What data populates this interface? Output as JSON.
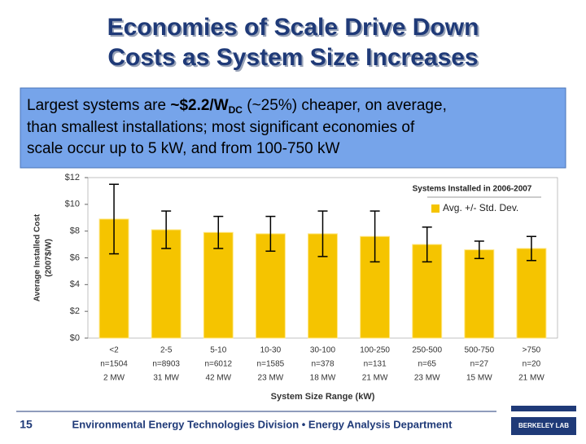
{
  "header": {
    "title_lines": [
      "Economies of Scale Drive Down",
      "Costs as System Size Increases"
    ]
  },
  "callout": {
    "before": "Largest systems are ",
    "highlight": "~$2.2/W",
    "subscript": "DC",
    "after_lines": [
      " (~25%) cheaper, on average,",
      "than smallest installations; most significant economies of",
      "scale occur up to 5 kW, and from 100-750 kW"
    ]
  },
  "chart_data": {
    "type": "bar",
    "y_label": [
      "Average Installed Cost",
      "(2007$/W)"
    ],
    "x_label": "System Size Range (kW)",
    "legend_title": "Systems Installed in 2006-2007",
    "categories": [
      "<2",
      "2-5",
      "5-10",
      "10-30",
      "30-100",
      "100-250",
      "250-500",
      "500-750",
      ">750"
    ],
    "counts": [
      "n=1504",
      "n=8903",
      "n=6012",
      "n=1585",
      "n=378",
      "n=131",
      "n=65",
      "n=27",
      "n=20"
    ],
    "capacities": [
      "2 MW",
      "31 MW",
      "42 MW",
      "23 MW",
      "18 MW",
      "21 MW",
      "23 MW",
      "15 MW",
      "21 MW"
    ],
    "series": [
      {
        "name": "Avg. +/- Std. Dev.",
        "color": "#f5c400",
        "values": [
          8.9,
          8.1,
          7.9,
          7.8,
          7.8,
          7.6,
          7.0,
          6.6,
          6.7
        ],
        "errors": [
          2.6,
          1.4,
          1.2,
          1.3,
          1.7,
          1.9,
          1.3,
          0.65,
          0.9
        ]
      }
    ],
    "ylim": [
      0,
      12
    ],
    "yticks": [
      {
        "value": 0,
        "label": "$0"
      },
      {
        "value": 2,
        "label": "$2"
      },
      {
        "value": 4,
        "label": "$4"
      },
      {
        "value": 6,
        "label": "$6"
      },
      {
        "value": 8,
        "label": "$8"
      },
      {
        "value": 10,
        "label": "$10"
      },
      {
        "value": 12,
        "label": "$12"
      }
    ],
    "legend": "upper right"
  },
  "footer": {
    "page": "15",
    "text": "Environmental Energy Technologies Division • Energy Analysis Department",
    "logo": "BERKELEY LAB"
  }
}
